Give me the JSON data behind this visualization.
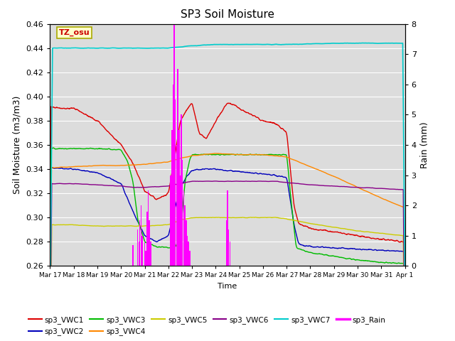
{
  "title": "SP3 Soil Moisture",
  "xlabel": "Time",
  "ylabel_left": "Soil Moisture (m3/m3)",
  "ylabel_right": "Rain (mm)",
  "ylim_left": [
    0.26,
    0.46
  ],
  "ylim_right": [
    0.0,
    8.0
  ],
  "yticks_left": [
    0.26,
    0.28,
    0.3,
    0.32,
    0.34,
    0.36,
    0.38,
    0.4,
    0.42,
    0.44,
    0.46
  ],
  "yticks_right": [
    0.0,
    1.0,
    2.0,
    3.0,
    4.0,
    5.0,
    6.0,
    7.0,
    8.0
  ],
  "xtick_labels": [
    "Mar 17",
    "Mar 18",
    "Mar 19",
    "Mar 20",
    "Mar 21",
    "Mar 22",
    "Mar 23",
    "Mar 24",
    "Mar 25",
    "Mar 26",
    "Mar 27",
    "Mar 28",
    "Mar 29",
    "Mar 30",
    "Mar 31",
    "Apr 1"
  ],
  "annotation_text": "TZ_osu",
  "annotation_color": "#cc0000",
  "annotation_bg": "#ffffcc",
  "annotation_border": "#aaaa00",
  "plot_bg": "#dcdcdc",
  "fig_bg": "#ffffff",
  "colors": {
    "sp3_VWC1": "#dd0000",
    "sp3_VWC2": "#0000bb",
    "sp3_VWC3": "#00bb00",
    "sp3_VWC4": "#ff8800",
    "sp3_VWC5": "#cccc00",
    "sp3_VWC6": "#880088",
    "sp3_VWC7": "#00cccc",
    "sp3_Rain": "#ff00ff"
  },
  "num_points": 1440,
  "days": 15
}
